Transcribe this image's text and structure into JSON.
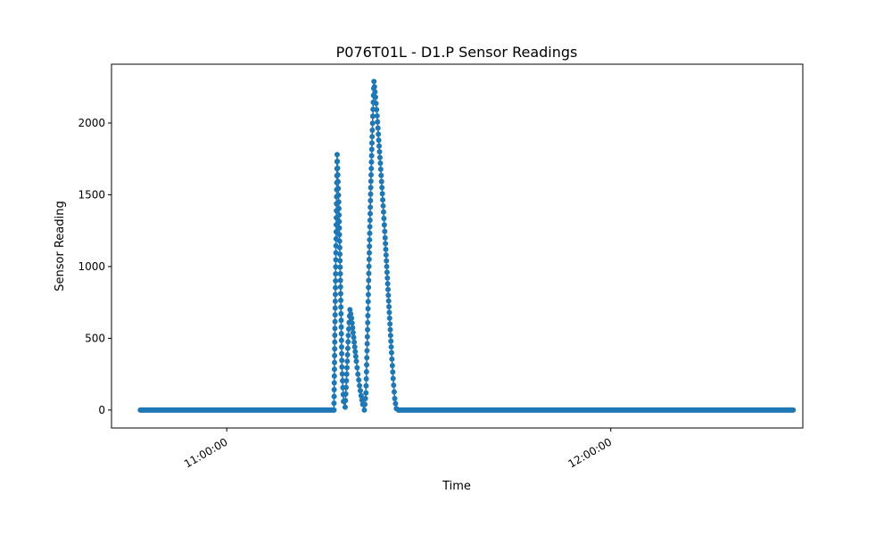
{
  "chart_data": {
    "type": "line",
    "title": "P076T01L - D1.P Sensor Readings",
    "xlabel": "Time",
    "ylabel": "Sensor Reading",
    "xlim": [
      "10:42:00",
      "12:30:00"
    ],
    "ylim": [
      -125,
      2410
    ],
    "xticks": [
      "11:00:00",
      "12:00:00"
    ],
    "yticks": [
      0,
      500,
      1000,
      1500,
      2000
    ],
    "grid": false,
    "legend": "none",
    "series_color": "#1f77b4",
    "baseline": {
      "value": 0,
      "segments": [
        [
          "10:46:30",
          "11:16:45"
        ],
        [
          "11:26:50",
          "12:28:30"
        ]
      ]
    },
    "series": [
      {
        "x": [
          "11:16:45",
          "11:17:00",
          "11:17:15",
          "11:17:30",
          "11:17:45",
          "11:18:00",
          "11:18:15",
          "11:18:30",
          "11:18:45",
          "11:19:00",
          "11:19:15",
          "11:19:30",
          "11:19:45",
          "11:20:00",
          "11:20:15",
          "11:20:30",
          "11:20:45",
          "11:21:00",
          "11:21:15",
          "11:21:30",
          "11:21:45",
          "11:22:00",
          "11:22:15",
          "11:22:30",
          "11:22:45",
          "11:23:00",
          "11:23:15",
          "11:23:30",
          "11:23:45",
          "11:24:00",
          "11:24:15",
          "11:24:30",
          "11:24:45",
          "11:25:00",
          "11:25:15",
          "11:25:30",
          "11:25:45",
          "11:26:00",
          "11:26:15",
          "11:26:30",
          "11:26:50"
        ],
        "y": [
          0,
          900,
          1780,
          1450,
          950,
          300,
          60,
          20,
          250,
          520,
          700,
          640,
          540,
          440,
          340,
          250,
          170,
          100,
          40,
          0,
          120,
          560,
          1050,
          1550,
          1950,
          2290,
          2180,
          2050,
          1880,
          1720,
          1550,
          1380,
          1200,
          1000,
          800,
          600,
          400,
          220,
          80,
          10,
          0
        ]
      }
    ]
  }
}
